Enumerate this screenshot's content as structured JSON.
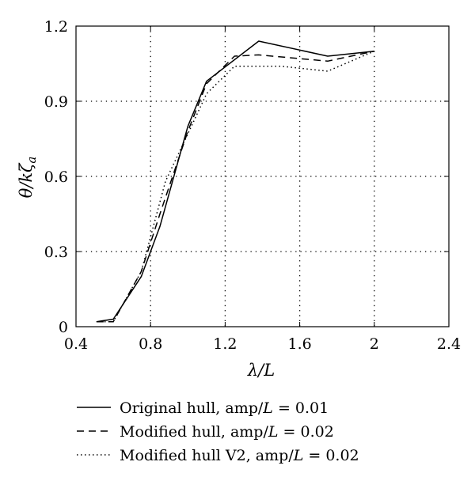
{
  "chart_data": {
    "type": "line",
    "title": "",
    "xlabel": "λ/L",
    "ylabel": "θ/kζa",
    "xlim": [
      0.4,
      2.4
    ],
    "ylim": [
      0,
      1.2
    ],
    "xticks": [
      0.4,
      0.8,
      1.2,
      1.6,
      2,
      2.4
    ],
    "xtick_labels": [
      "0.4",
      "0.8",
      "1.2",
      "1.6",
      "2",
      "2.4"
    ],
    "yticks": [
      0,
      0.3,
      0.6,
      0.9,
      1.2
    ],
    "ytick_labels": [
      "0",
      "0.3",
      "0.6",
      "0.9",
      "1.2"
    ],
    "grid": true,
    "legend_position": "bottom",
    "series": [
      {
        "name": "Original hull, amp/L = 0.01",
        "style": "solid",
        "x": [
          0.51,
          0.6,
          0.75,
          0.85,
          1.0,
          1.1,
          1.38,
          1.75,
          2.0
        ],
        "y": [
          0.02,
          0.03,
          0.2,
          0.4,
          0.8,
          0.98,
          1.14,
          1.08,
          1.1
        ]
      },
      {
        "name": "Modified hull, amp/L = 0.02",
        "style": "dashed",
        "x": [
          0.51,
          0.6,
          0.75,
          0.85,
          1.0,
          1.1,
          1.25,
          1.38,
          1.75,
          2.0
        ],
        "y": [
          0.02,
          0.02,
          0.22,
          0.45,
          0.78,
          0.97,
          1.08,
          1.085,
          1.06,
          1.1
        ]
      },
      {
        "name": "Modified hull V2, amp/L = 0.02",
        "style": "dotted",
        "x": [
          0.51,
          0.6,
          0.75,
          0.88,
          1.0,
          1.1,
          1.25,
          1.5,
          1.75,
          2.0
        ],
        "y": [
          0.02,
          0.02,
          0.22,
          0.58,
          0.77,
          0.93,
          1.04,
          1.04,
          1.02,
          1.1
        ]
      }
    ],
    "legend_entries": [
      {
        "prefix": "Original hull, amp",
        "suffix": " = 0.01"
      },
      {
        "prefix": "Modified hull, amp",
        "suffix": " = 0.02"
      },
      {
        "prefix": "Modified hull V2, amp",
        "suffix": " = 0.02"
      }
    ]
  }
}
